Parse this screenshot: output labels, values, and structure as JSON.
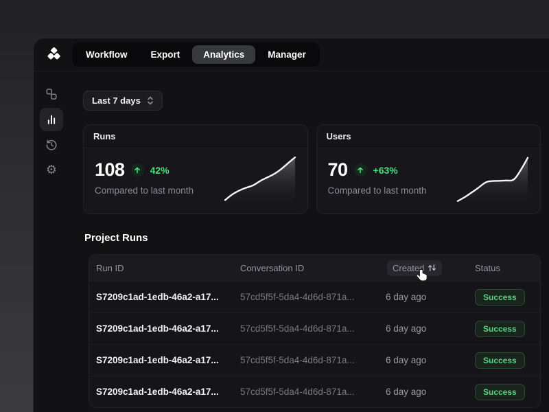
{
  "nav": {
    "tabs": [
      {
        "label": "Workflow",
        "active": false
      },
      {
        "label": "Export",
        "active": false
      },
      {
        "label": "Analytics",
        "active": true
      },
      {
        "label": "Manager",
        "active": false
      }
    ]
  },
  "sidebar": {
    "items": [
      {
        "icon": "nodes-icon",
        "active": false
      },
      {
        "icon": "bar-chart-icon",
        "active": true
      },
      {
        "icon": "history-icon",
        "active": false
      },
      {
        "icon": "settings-icon",
        "active": false,
        "glyph": "⚙"
      }
    ]
  },
  "filters": {
    "date_range_label": "Last 7 days"
  },
  "stats": [
    {
      "title": "Runs",
      "value": "108",
      "change": "42%",
      "trend": "up",
      "subtitle": "Compared to last month",
      "sparkline": [
        8,
        20,
        28,
        34,
        38,
        48,
        55,
        62,
        72,
        85,
        97
      ]
    },
    {
      "title": "Users",
      "value": "70",
      "change": "+63%",
      "trend": "up",
      "subtitle": "Compared to last month",
      "sparkline": [
        6,
        14,
        24,
        34,
        46,
        48,
        48,
        49,
        48,
        70,
        96
      ]
    }
  ],
  "section": {
    "title": "Project Runs"
  },
  "table": {
    "columns": [
      {
        "label": "Run ID",
        "sortable": false
      },
      {
        "label": "Conversation ID",
        "sortable": false
      },
      {
        "label": "Created",
        "sortable": true
      },
      {
        "label": "Status",
        "sortable": false
      }
    ],
    "rows": [
      {
        "run_id": "S7209c1ad-1edb-46a2-a17...",
        "conversation_id": "57cd5f5f-5da4-4d6d-871a...",
        "created": "6 day ago",
        "status": "Success"
      },
      {
        "run_id": "S7209c1ad-1edb-46a2-a17...",
        "conversation_id": "57cd5f5f-5da4-4d6d-871a...",
        "created": "6 day ago",
        "status": "Success"
      },
      {
        "run_id": "S7209c1ad-1edb-46a2-a17...",
        "conversation_id": "57cd5f5f-5da4-4d6d-871a...",
        "created": "6 day ago",
        "status": "Success"
      },
      {
        "run_id": "S7209c1ad-1edb-46a2-a17...",
        "conversation_id": "57cd5f5f-5da4-4d6d-871a...",
        "created": "6 day ago",
        "status": "Success"
      }
    ]
  },
  "colors": {
    "accent_green": "#4ade80",
    "badge_text": "#57d584",
    "badge_bg": "#18241c",
    "badge_border": "#2e4a38",
    "window_bg": "#121215",
    "card_bg": "#17171b"
  }
}
